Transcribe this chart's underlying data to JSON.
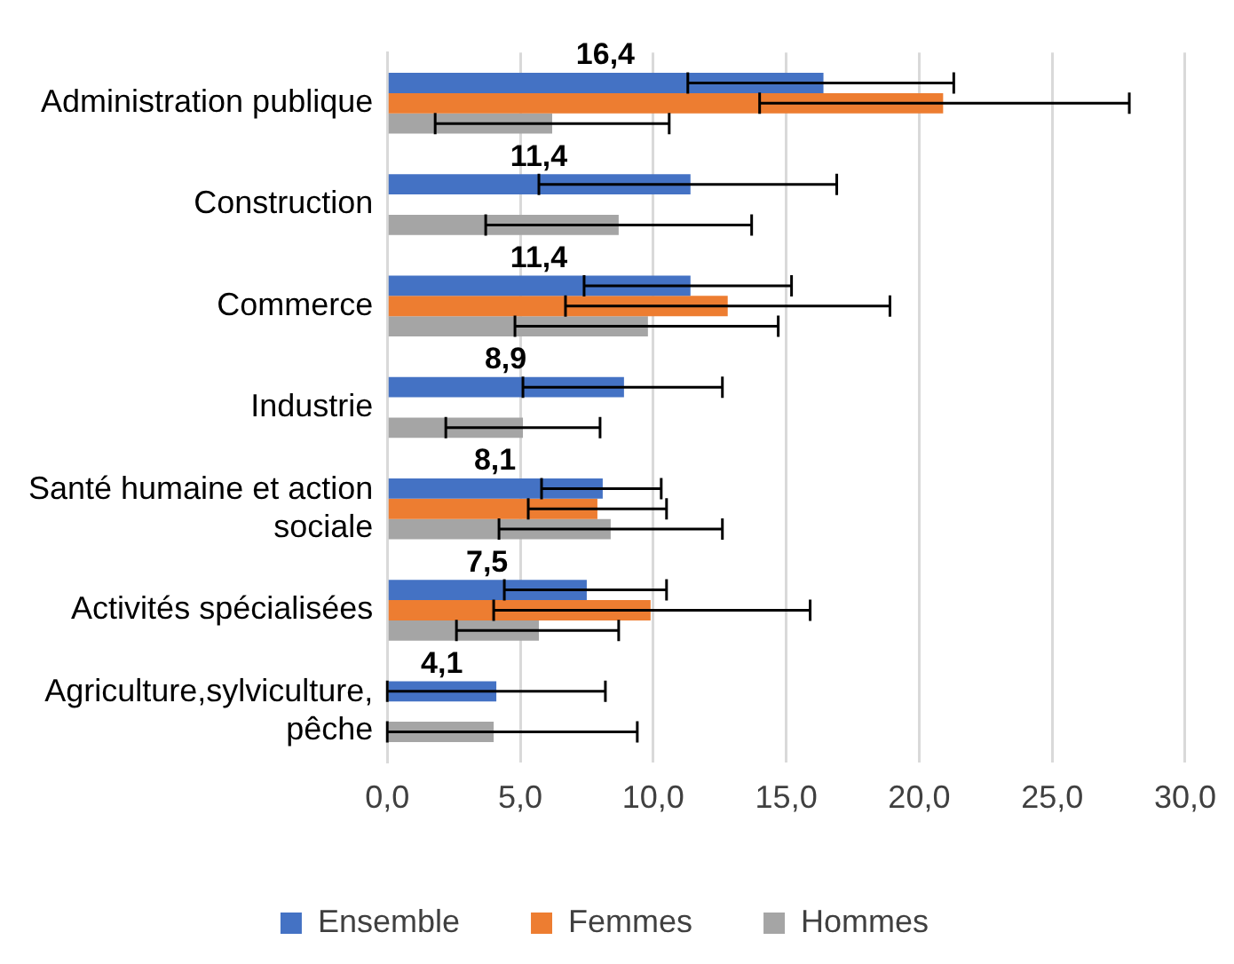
{
  "chart_data": {
    "type": "bar",
    "orientation": "horizontal",
    "categories": [
      "Administration publique",
      "Construction",
      "Commerce",
      "Industrie",
      "Santé humaine et action sociale",
      "Activités spécialisées",
      "Agriculture,sylviculture, pêche"
    ],
    "series": [
      {
        "name": "Ensemble",
        "color": "#4472c4",
        "values": [
          16.4,
          11.4,
          11.4,
          8.9,
          8.1,
          7.5,
          4.1
        ],
        "value_labels": [
          "16,4",
          "11,4",
          "11,4",
          "8,9",
          "8,1",
          "7,5",
          "4,1"
        ],
        "errors": [
          [
            11.3,
            21.3
          ],
          [
            5.7,
            16.9
          ],
          [
            7.4,
            15.2
          ],
          [
            5.1,
            12.6
          ],
          [
            5.8,
            10.3
          ],
          [
            4.4,
            10.5
          ],
          [
            0,
            8.2
          ]
        ]
      },
      {
        "name": "Femmes",
        "color": "#ed7d31",
        "values": [
          20.9,
          null,
          12.8,
          null,
          7.9,
          9.9,
          null
        ],
        "errors": [
          [
            14.0,
            27.9
          ],
          null,
          [
            6.7,
            18.9
          ],
          null,
          [
            5.3,
            10.5
          ],
          [
            4.0,
            15.9
          ],
          null
        ]
      },
      {
        "name": "Hommes",
        "color": "#a5a5a5",
        "values": [
          6.2,
          8.7,
          9.8,
          5.1,
          8.4,
          5.7,
          4.0
        ],
        "errors": [
          [
            1.8,
            10.6
          ],
          [
            3.7,
            13.7
          ],
          [
            4.8,
            14.7
          ],
          [
            2.2,
            8.0
          ],
          [
            4.2,
            12.6
          ],
          [
            2.6,
            8.7
          ],
          [
            0,
            9.4
          ]
        ]
      }
    ],
    "xlim": [
      0,
      30
    ],
    "xticks": [
      {
        "value": 0,
        "label": "0,0"
      },
      {
        "value": 5,
        "label": "5,0"
      },
      {
        "value": 10,
        "label": "10,0"
      },
      {
        "value": 15,
        "label": "15,0"
      },
      {
        "value": 20,
        "label": "20,0"
      },
      {
        "value": 25,
        "label": "25,0"
      },
      {
        "value": 30,
        "label": "30,0"
      }
    ],
    "grid": "x",
    "legend": "bottom"
  }
}
